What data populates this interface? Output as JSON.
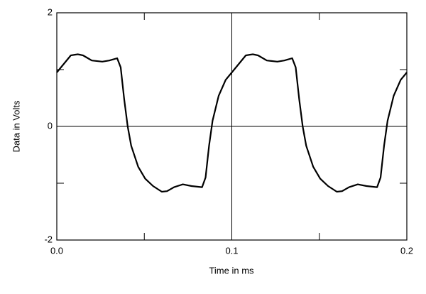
{
  "chart_data": {
    "type": "line",
    "xlabel": "Time in ms",
    "ylabel": "Data in Volts",
    "xlim": [
      0,
      0.2
    ],
    "ylim": [
      -2,
      2
    ],
    "xticks": [
      {
        "value": 0,
        "label": "0.0"
      },
      0.1,
      0.2
    ],
    "yticks": [
      -2,
      0,
      2
    ],
    "xticks_minor": [
      0.05,
      0.15
    ],
    "yticks_minor": [
      -1,
      1
    ],
    "grid": true,
    "series": [
      {
        "color": "#000000",
        "x": [
          0,
          0.004,
          0.008,
          0.012,
          0.015,
          0.02,
          0.026,
          0.03,
          0.0345,
          0.0365,
          0.0385,
          0.0405,
          0.0425,
          0.0465,
          0.0505,
          0.055,
          0.06,
          0.063,
          0.067,
          0.072,
          0.077,
          0.083,
          0.085,
          0.087,
          0.089,
          0.0925,
          0.0965,
          0.1,
          0.104,
          0.108,
          0.112,
          0.115,
          0.12,
          0.126,
          0.13,
          0.1345,
          0.1365,
          0.1385,
          0.1405,
          0.1425,
          0.1465,
          0.1505,
          0.155,
          0.16,
          0.163,
          0.167,
          0.172,
          0.177,
          0.183,
          0.185,
          0.187,
          0.189,
          0.1925,
          0.1965,
          0.2
        ],
        "values": [
          0.95,
          1.1,
          1.25,
          1.27,
          1.25,
          1.16,
          1.14,
          1.16,
          1.2,
          1.04,
          0.48,
          0,
          -0.34,
          -0.71,
          -0.92,
          -1.05,
          -1.15,
          -1.14,
          -1.07,
          -1.02,
          -1.05,
          -1.07,
          -0.9,
          -0.34,
          0.1,
          0.54,
          0.82,
          0.95,
          1.1,
          1.25,
          1.27,
          1.25,
          1.16,
          1.14,
          1.16,
          1.2,
          1.04,
          0.48,
          0,
          -0.34,
          -0.71,
          -0.92,
          -1.05,
          -1.15,
          -1.14,
          -1.07,
          -1.02,
          -1.05,
          -1.07,
          -0.9,
          -0.34,
          0.1,
          0.54,
          0.82,
          0.95
        ]
      }
    ]
  }
}
